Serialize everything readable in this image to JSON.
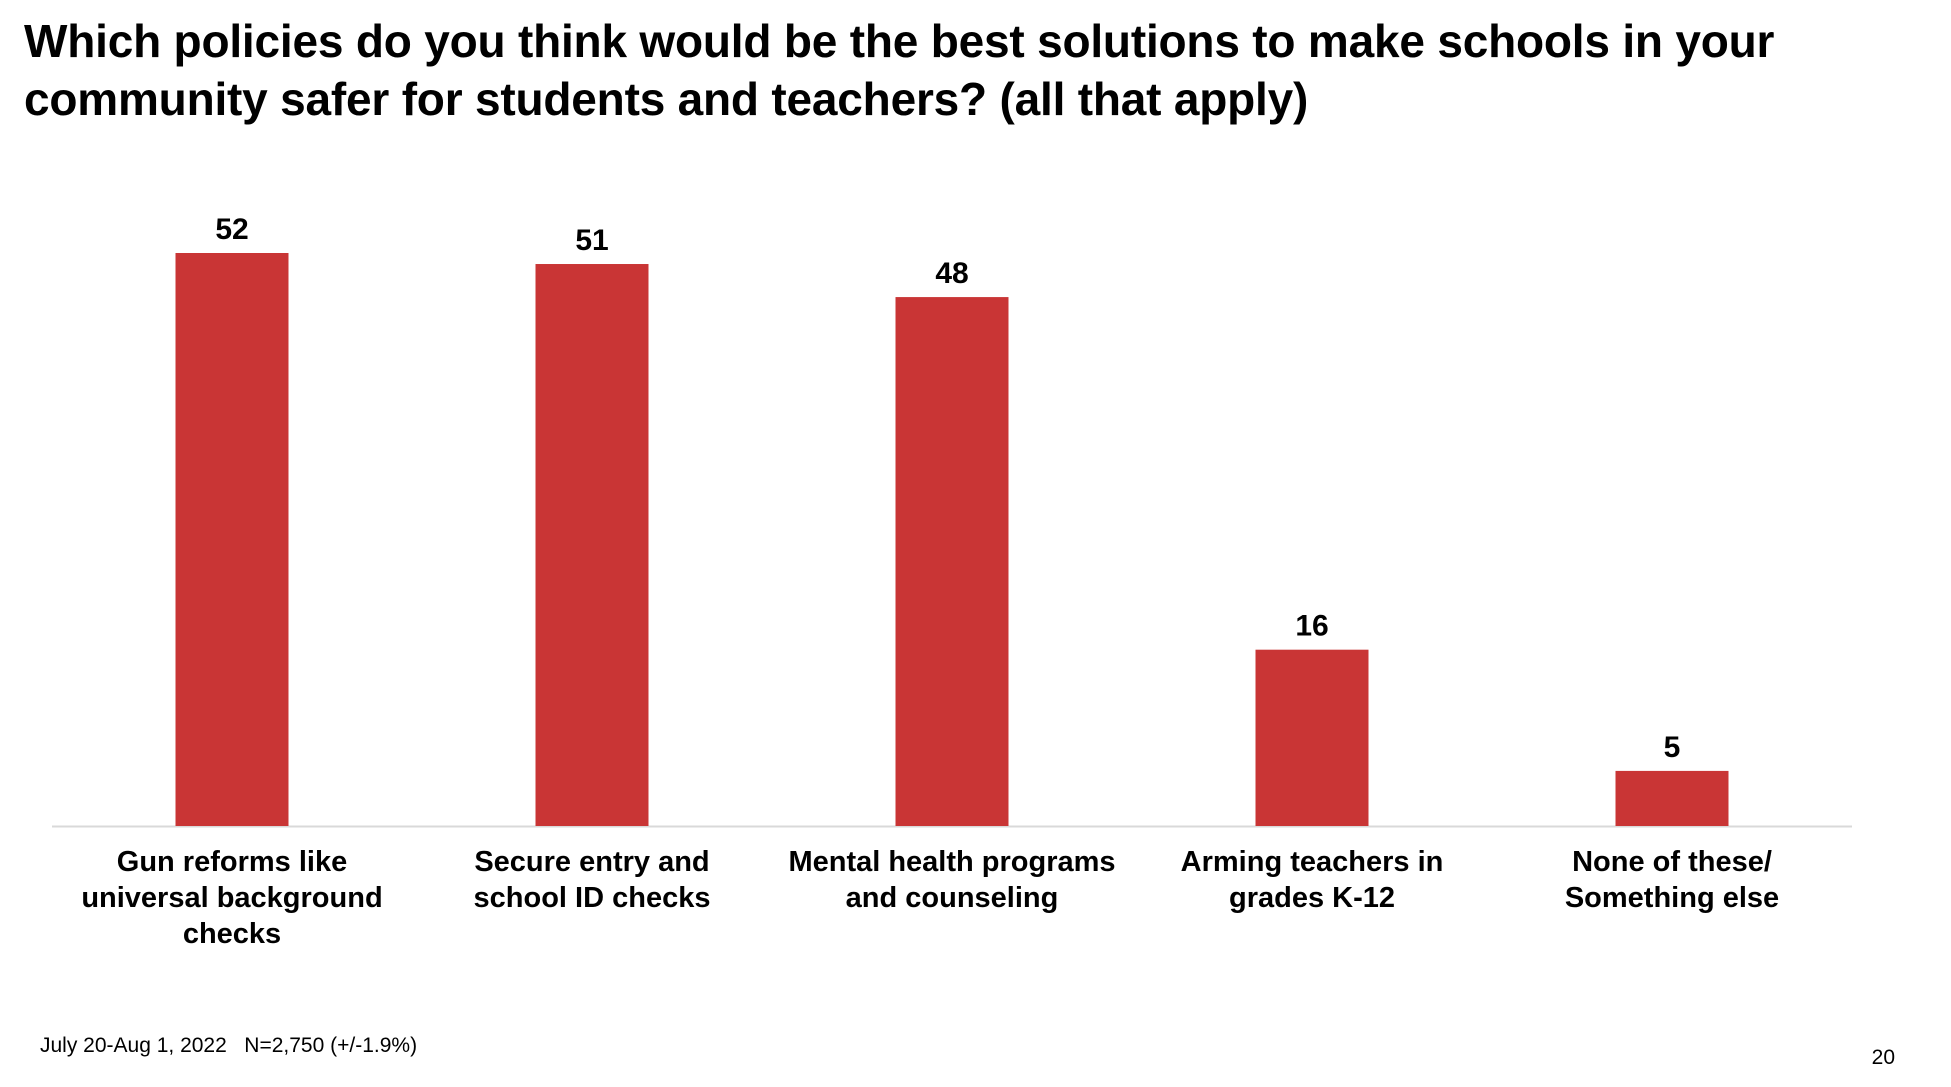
{
  "slide": {
    "title": "Which policies do you think would be the best solutions to make schools in your community safer for students and teachers? (all that apply)",
    "footnote": "July 20-Aug 1, 2022   N=2,750 (+/-1.9%)",
    "page_number": "20"
  },
  "colors": {
    "bar": "#C93535",
    "axis": "#D9D9D9",
    "text": "#000000"
  },
  "chart_data": {
    "type": "bar",
    "title": "Which policies do you think would be the best solutions to make schools in your community safer for students and teachers? (all that apply)",
    "categories": [
      "Gun reforms like\nuniversal background\nchecks",
      "Secure entry and\nschool ID checks",
      "Mental health programs\nand counseling",
      "Arming teachers in\ngrades K-12",
      "None of these/\nSomething else"
    ],
    "values": [
      52,
      51,
      48,
      16,
      5
    ],
    "xlabel": "",
    "ylabel": "",
    "ylim": [
      0,
      52
    ],
    "grid": false,
    "legend": "none"
  }
}
